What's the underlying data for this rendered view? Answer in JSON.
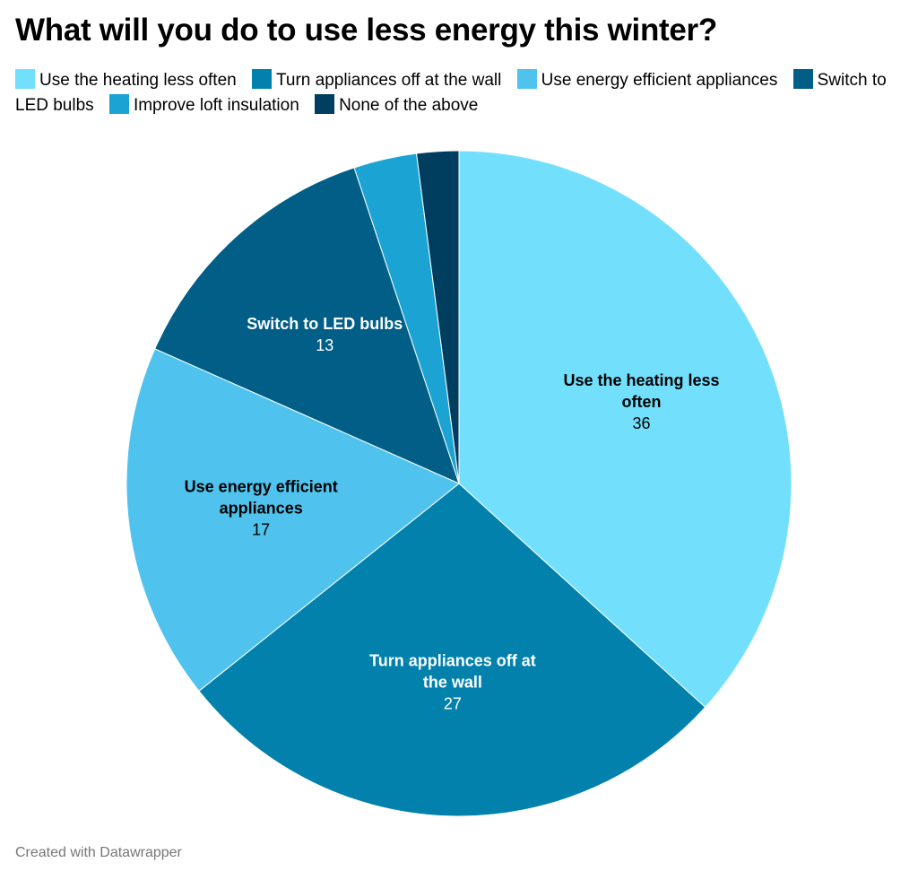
{
  "title": "What will you do to use less energy this winter?",
  "footer": "Created with Datawrapper",
  "chart_data": {
    "type": "pie",
    "title": "What will you do to use less energy this winter?",
    "legend_placement": "top",
    "slices": [
      {
        "label": "Use the heating less often",
        "value": 36,
        "color": "#72e0fc",
        "label_color": "#000000",
        "label_lines": [
          "Use the heating less",
          "often"
        ]
      },
      {
        "label": "Turn appliances off at the wall",
        "value": 27,
        "color": "#0181ac",
        "label_color": "#ffffff",
        "label_lines": [
          "Turn appliances off at",
          "the wall"
        ]
      },
      {
        "label": "Use energy efficient appliances",
        "value": 17,
        "color": "#4fc3ed",
        "label_color": "#000000",
        "label_lines": [
          "Use energy efficient",
          "appliances"
        ]
      },
      {
        "label": "Switch to LED bulbs",
        "value": 13,
        "color": "#005e87",
        "label_color": "#ffffff",
        "label_lines": [
          "Switch to LED bulbs"
        ]
      },
      {
        "label": "Improve loft insulation",
        "value": 3,
        "color": "#1ba4d3",
        "label_color": null,
        "label_lines": []
      },
      {
        "label": "None of the above",
        "value": 2,
        "color": "#003e60",
        "label_color": null,
        "label_lines": []
      }
    ]
  }
}
